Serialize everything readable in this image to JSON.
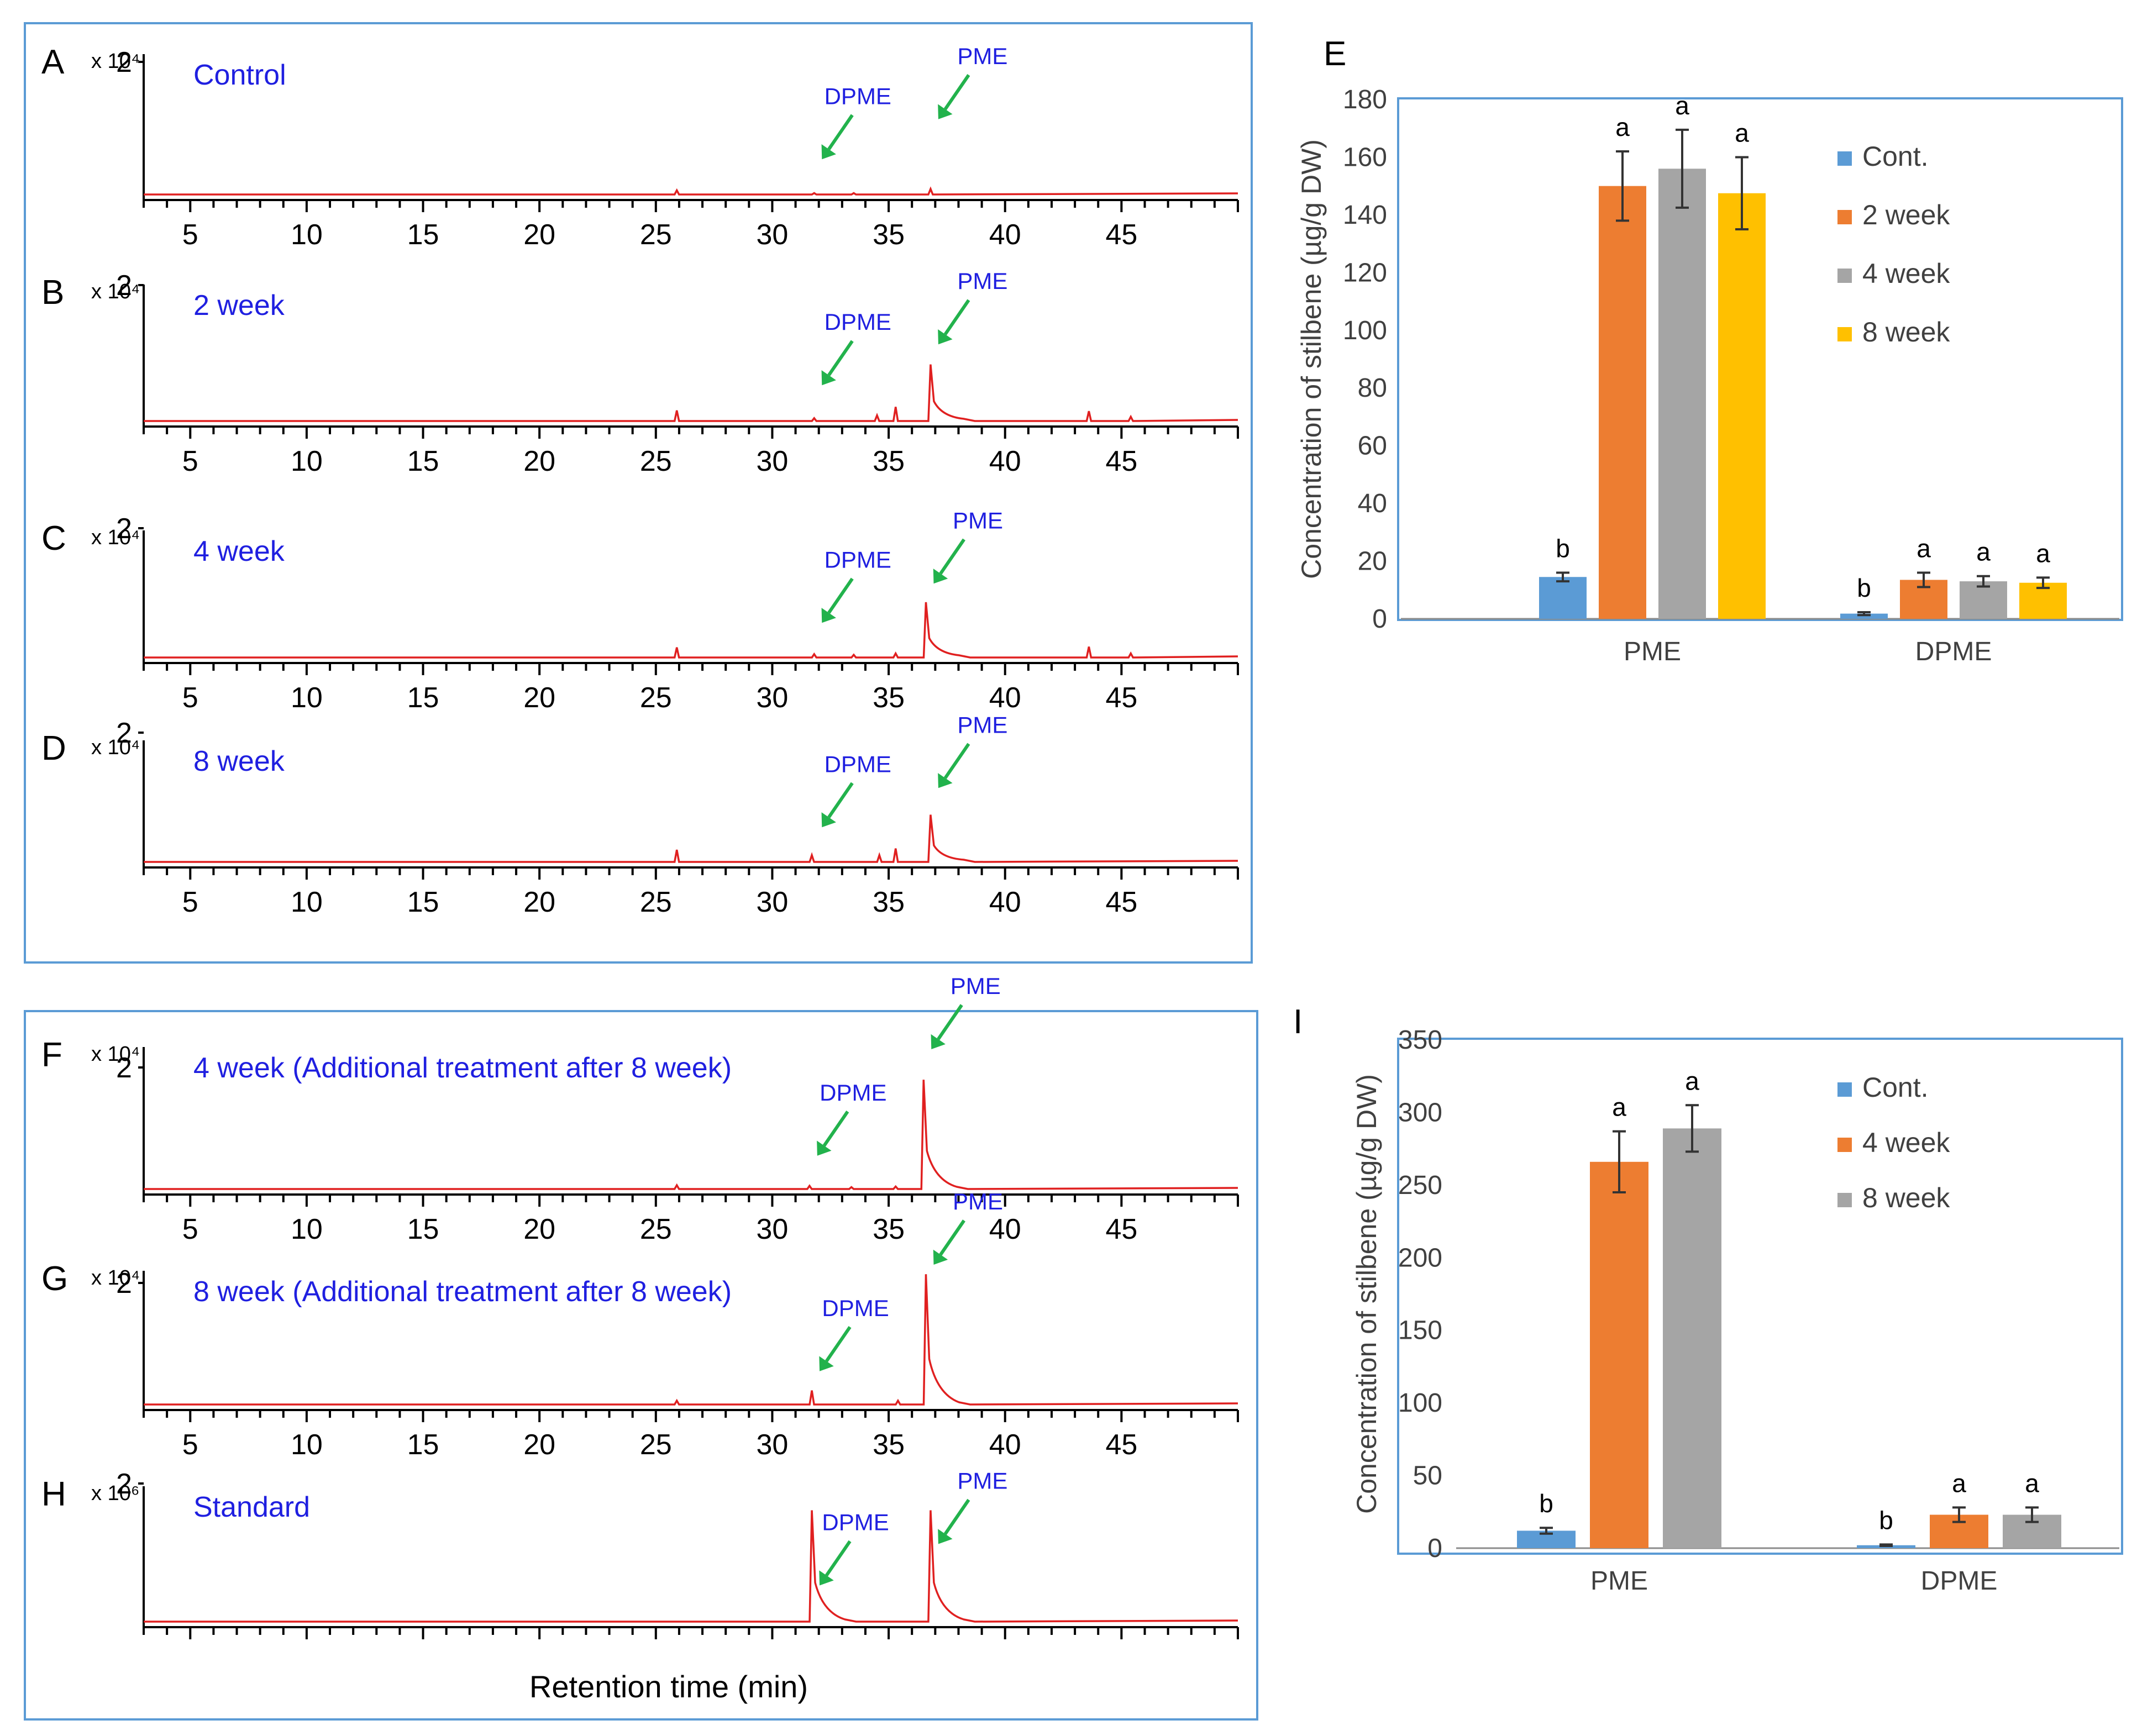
{
  "chart_data": {
    "chromatograms": {
      "group1": {
        "panels": [
          {
            "label": "A",
            "condition": "Control",
            "scale": "x 10⁴",
            "ytick": "2",
            "peaks": [
              {
                "x": 25.9,
                "h": 0.06
              },
              {
                "x": 31.8,
                "h": 0.02
              },
              {
                "x": 33.5,
                "h": 0.02
              },
              {
                "x": 36.8,
                "h": 0.08
              }
            ],
            "arrows": [
              {
                "name": "DPME",
                "x": 31.8
              },
              {
                "name": "PME",
                "x": 36.8
              }
            ]
          },
          {
            "label": "B",
            "condition": "2 week",
            "scale": "x 10⁴",
            "ytick": "2",
            "peaks": [
              {
                "x": 25.9,
                "h": 0.15
              },
              {
                "x": 31.8,
                "h": 0.04
              },
              {
                "x": 34.5,
                "h": 0.08
              },
              {
                "x": 35.3,
                "h": 0.2
              },
              {
                "x": 36.8,
                "h": 0.8
              },
              {
                "x": 43.6,
                "h": 0.14
              },
              {
                "x": 45.4,
                "h": 0.06
              }
            ],
            "arrows": [
              {
                "name": "DPME",
                "x": 31.8
              },
              {
                "name": "PME",
                "x": 36.8
              }
            ]
          },
          {
            "label": "C",
            "condition": "4 week",
            "scale": "x 10⁴",
            "ytick": "2",
            "peaks": [
              {
                "x": 25.9,
                "h": 0.15
              },
              {
                "x": 31.8,
                "h": 0.05
              },
              {
                "x": 33.5,
                "h": 0.04
              },
              {
                "x": 35.3,
                "h": 0.06
              },
              {
                "x": 36.6,
                "h": 0.82
              },
              {
                "x": 43.6,
                "h": 0.16
              },
              {
                "x": 45.4,
                "h": 0.06
              }
            ],
            "arrows": [
              {
                "name": "DPME",
                "x": 31.8
              },
              {
                "name": "PME",
                "x": 36.6
              }
            ]
          },
          {
            "label": "D",
            "condition": "8 week",
            "scale": "x 10⁴",
            "ytick": "2",
            "peaks": [
              {
                "x": 25.9,
                "h": 0.18
              },
              {
                "x": 31.7,
                "h": 0.1
              },
              {
                "x": 34.6,
                "h": 0.1
              },
              {
                "x": 35.3,
                "h": 0.2
              },
              {
                "x": 36.8,
                "h": 0.7
              }
            ],
            "arrows": [
              {
                "name": "DPME",
                "x": 31.8
              },
              {
                "name": "PME",
                "x": 36.8
              }
            ]
          }
        ],
        "xticks": [
          "5",
          "10",
          "15",
          "20",
          "25",
          "30",
          "35",
          "40",
          "45"
        ]
      },
      "group2": {
        "panels": [
          {
            "label": "F",
            "condition": "4 week (Additional treatment after 8 week)",
            "scale": "x 10⁴",
            "ytick": "2",
            "peaks": [
              {
                "x": 25.9,
                "h": 0.06
              },
              {
                "x": 31.6,
                "h": 0.05
              },
              {
                "x": 33.4,
                "h": 0.03
              },
              {
                "x": 35.3,
                "h": 0.04
              },
              {
                "x": 36.5,
                "h": 1.72
              }
            ],
            "arrows": [
              {
                "name": "DPME",
                "x": 31.6
              },
              {
                "name": "PME",
                "x": 36.5
              }
            ]
          },
          {
            "label": "G",
            "condition": "8 week (Additional treatment after 8 week)",
            "scale": "x 10⁴",
            "ytick": "2",
            "peaks": [
              {
                "x": 25.9,
                "h": 0.06
              },
              {
                "x": 31.7,
                "h": 0.22
              },
              {
                "x": 35.4,
                "h": 0.06
              },
              {
                "x": 36.6,
                "h": 2.05
              }
            ],
            "arrows": [
              {
                "name": "DPME",
                "x": 31.7
              },
              {
                "name": "PME",
                "x": 36.6
              }
            ]
          },
          {
            "label": "H",
            "condition": "Standard",
            "scale": "x 10⁶",
            "ytick": "2",
            "peaks": [
              {
                "x": 31.7,
                "h": 1.55
              },
              {
                "x": 36.8,
                "h": 1.55
              }
            ],
            "arrows": [
              {
                "name": "DPME",
                "x": 31.7
              },
              {
                "name": "PME",
                "x": 36.8
              }
            ]
          }
        ],
        "xticks": [
          "5",
          "10",
          "15",
          "20",
          "25",
          "30",
          "35",
          "40",
          "45"
        ],
        "xlabel": "Retention time (min)"
      }
    },
    "bar_E": {
      "type": "bar",
      "label": "E",
      "ylabel": "Concentration of stilbene  (µg/g DW)",
      "ylim": [
        0,
        180
      ],
      "yticks": [
        "0",
        "20",
        "40",
        "60",
        "80",
        "100",
        "120",
        "140",
        "160",
        "180"
      ],
      "categories": [
        "PME",
        "DPME"
      ],
      "series": [
        {
          "name": "Cont.",
          "color": "#5b9bd5",
          "values": [
            14.5,
            1.8
          ],
          "errors": [
            1.5,
            0.5
          ],
          "letters": [
            "b",
            "b"
          ]
        },
        {
          "name": "2 week",
          "color": "#ed7d31",
          "values": [
            150,
            13.5
          ],
          "errors": [
            12,
            2.5
          ],
          "letters": [
            "a",
            "a"
          ]
        },
        {
          "name": "4 week",
          "color": "#a5a5a5",
          "values": [
            156,
            13
          ],
          "errors": [
            13.5,
            1.8
          ],
          "letters": [
            "a",
            "a"
          ]
        },
        {
          "name": "8 week",
          "color": "#ffc000",
          "values": [
            147.5,
            12.5
          ],
          "errors": [
            12.5,
            1.8
          ],
          "letters": [
            "a",
            "a"
          ]
        }
      ]
    },
    "bar_I": {
      "type": "bar",
      "label": "I",
      "ylabel": "Concentration of stilbene (µg/g DW)",
      "ylim": [
        0,
        350
      ],
      "yticks": [
        "0",
        "50",
        "100",
        "150",
        "200",
        "250",
        "300",
        "350"
      ],
      "categories": [
        "PME",
        "DPME"
      ],
      "series": [
        {
          "name": "Cont.",
          "color": "#5b9bd5",
          "values": [
            12,
            2
          ],
          "errors": [
            2,
            0.5
          ],
          "letters": [
            "b",
            "b"
          ]
        },
        {
          "name": "4 week",
          "color": "#ed7d31",
          "values": [
            266,
            23
          ],
          "errors": [
            21,
            5
          ],
          "letters": [
            "a",
            "a"
          ]
        },
        {
          "name": "8 week",
          "color": "#a5a5a5",
          "values": [
            289,
            23
          ],
          "errors": [
            16,
            5
          ],
          "letters": [
            "a",
            "a"
          ]
        }
      ]
    }
  }
}
